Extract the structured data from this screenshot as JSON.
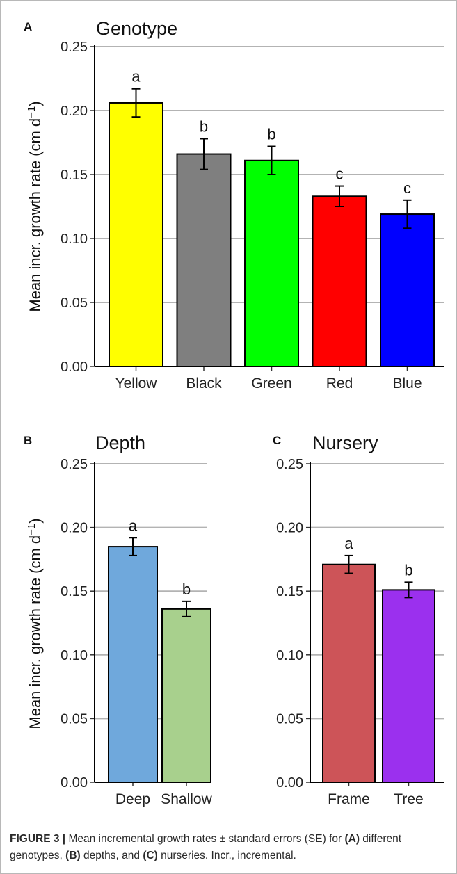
{
  "chart_data": [
    {
      "panel_label": "A",
      "type": "bar",
      "title": "Genotype",
      "ylabel": "Mean incr. growth rate (cm d",
      "ylabel_sup": "−1",
      "ylabel_close": ")",
      "categories": [
        "Yellow",
        "Black",
        "Green",
        "Red",
        "Blue"
      ],
      "values": [
        0.206,
        0.166,
        0.161,
        0.133,
        0.119
      ],
      "errors": [
        0.011,
        0.012,
        0.011,
        0.008,
        0.011
      ],
      "significance": [
        "a",
        "b",
        "b",
        "c",
        "c"
      ],
      "colors": [
        "#ffff00",
        "#7f7f7f",
        "#00ff00",
        "#ff0000",
        "#0000ff"
      ],
      "ylim": [
        0,
        0.25
      ],
      "yticks": [
        "0.00",
        "0.05",
        "0.10",
        "0.15",
        "0.20",
        "0.25"
      ],
      "grid": "horizontal"
    },
    {
      "panel_label": "B",
      "type": "bar",
      "title": "Depth",
      "ylabel": "Mean incr. growth rate (cm d",
      "ylabel_sup": "−1",
      "ylabel_close": ")",
      "categories": [
        "Deep",
        "Shallow"
      ],
      "values": [
        0.185,
        0.136
      ],
      "errors": [
        0.007,
        0.006
      ],
      "significance": [
        "a",
        "b"
      ],
      "colors": [
        "#6fa8dc",
        "#a8d08d"
      ],
      "ylim": [
        0,
        0.25
      ],
      "yticks": [
        "0.00",
        "0.05",
        "0.10",
        "0.15",
        "0.20",
        "0.25"
      ],
      "grid": "horizontal"
    },
    {
      "panel_label": "C",
      "type": "bar",
      "title": "Nursery",
      "ylabel": "",
      "categories": [
        "Frame",
        "Tree"
      ],
      "values": [
        0.171,
        0.151
      ],
      "errors": [
        0.007,
        0.006
      ],
      "significance": [
        "a",
        "b"
      ],
      "colors": [
        "#cd5458",
        "#9b30ee"
      ],
      "ylim": [
        0,
        0.25
      ],
      "yticks": [
        "0.00",
        "0.05",
        "0.10",
        "0.15",
        "0.20",
        "0.25"
      ],
      "grid": "horizontal"
    }
  ],
  "caption": {
    "figure_label": "FIGURE 3 |",
    "text_1": " Mean incremental growth rates ± standard errors (SE) for ",
    "bold_a": "(A)",
    "text_2": " different genotypes, ",
    "bold_b": "(B)",
    "text_3": " depths, and ",
    "bold_c": "(C)",
    "text_4": " nurseries. Incr., incremental."
  }
}
